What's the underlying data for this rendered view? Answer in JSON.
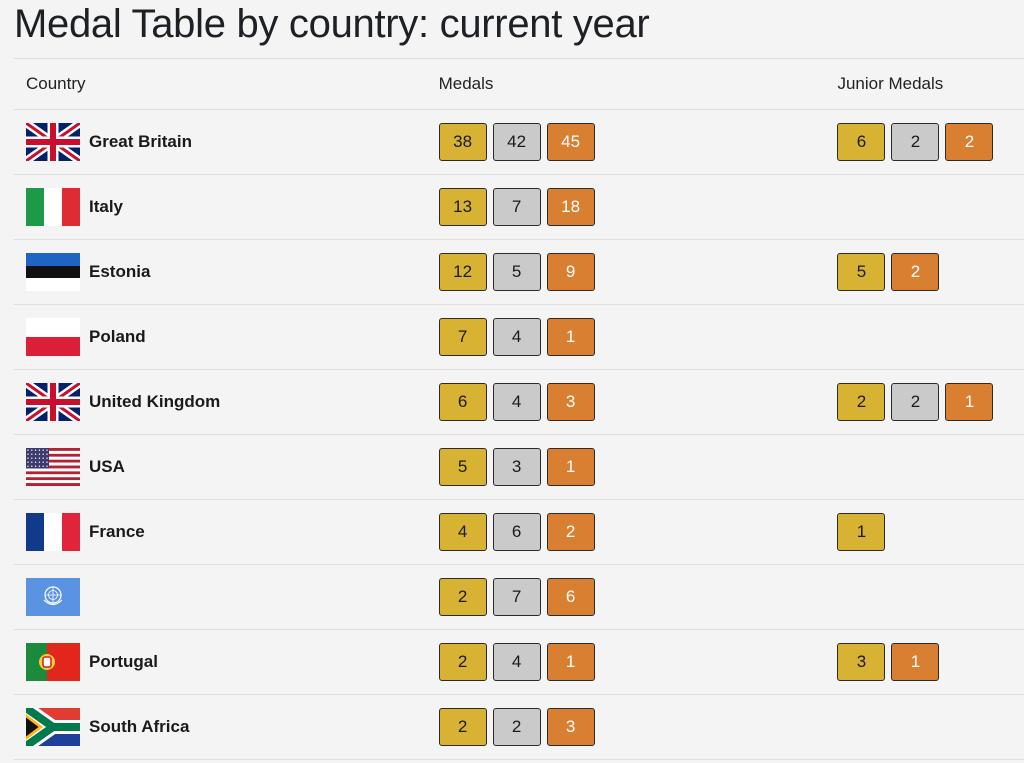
{
  "page": {
    "title": "Medal Table by country: current year"
  },
  "table": {
    "headers": {
      "country": "Country",
      "medals": "Medals",
      "junior": "Junior Medals"
    },
    "rows": [
      {
        "country": "Great Britain",
        "flag": "uk-flag",
        "medals": [
          {
            "type": "gold",
            "value": "38"
          },
          {
            "type": "silver",
            "value": "42"
          },
          {
            "type": "bronze",
            "value": "45"
          }
        ],
        "junior": [
          {
            "type": "gold",
            "value": "6"
          },
          {
            "type": "silver",
            "value": "2"
          },
          {
            "type": "bronze",
            "value": "2"
          }
        ]
      },
      {
        "country": "Italy",
        "flag": "italy-flag",
        "medals": [
          {
            "type": "gold",
            "value": "13"
          },
          {
            "type": "silver",
            "value": "7"
          },
          {
            "type": "bronze",
            "value": "18"
          }
        ],
        "junior": []
      },
      {
        "country": "Estonia",
        "flag": "estonia-flag",
        "medals": [
          {
            "type": "gold",
            "value": "12"
          },
          {
            "type": "silver",
            "value": "5"
          },
          {
            "type": "bronze",
            "value": "9"
          }
        ],
        "junior": [
          {
            "type": "gold",
            "value": "5"
          },
          {
            "type": "bronze",
            "value": "2"
          }
        ]
      },
      {
        "country": "Poland",
        "flag": "poland-flag",
        "medals": [
          {
            "type": "gold",
            "value": "7"
          },
          {
            "type": "silver",
            "value": "4"
          },
          {
            "type": "bronze",
            "value": "1"
          }
        ],
        "junior": []
      },
      {
        "country": "United Kingdom",
        "flag": "uk-flag",
        "medals": [
          {
            "type": "gold",
            "value": "6"
          },
          {
            "type": "silver",
            "value": "4"
          },
          {
            "type": "bronze",
            "value": "3"
          }
        ],
        "junior": [
          {
            "type": "gold",
            "value": "2"
          },
          {
            "type": "silver",
            "value": "2"
          },
          {
            "type": "bronze",
            "value": "1"
          }
        ]
      },
      {
        "country": "USA",
        "flag": "usa-flag",
        "medals": [
          {
            "type": "gold",
            "value": "5"
          },
          {
            "type": "silver",
            "value": "3"
          },
          {
            "type": "bronze",
            "value": "1"
          }
        ],
        "junior": []
      },
      {
        "country": "France",
        "flag": "france-flag",
        "medals": [
          {
            "type": "gold",
            "value": "4"
          },
          {
            "type": "silver",
            "value": "6"
          },
          {
            "type": "bronze",
            "value": "2"
          }
        ],
        "junior": [
          {
            "type": "gold",
            "value": "1"
          }
        ]
      },
      {
        "country": "",
        "flag": "un-flag",
        "medals": [
          {
            "type": "gold",
            "value": "2"
          },
          {
            "type": "silver",
            "value": "7"
          },
          {
            "type": "bronze",
            "value": "6"
          }
        ],
        "junior": []
      },
      {
        "country": "Portugal",
        "flag": "portugal-flag",
        "medals": [
          {
            "type": "gold",
            "value": "2"
          },
          {
            "type": "silver",
            "value": "4"
          },
          {
            "type": "bronze",
            "value": "1"
          }
        ],
        "junior": [
          {
            "type": "gold",
            "value": "3"
          },
          {
            "type": "bronze",
            "value": "1"
          }
        ]
      },
      {
        "country": "South Africa",
        "flag": "south-africa-flag",
        "medals": [
          {
            "type": "gold",
            "value": "2"
          },
          {
            "type": "silver",
            "value": "2"
          },
          {
            "type": "bronze",
            "value": "3"
          }
        ],
        "junior": []
      }
    ]
  },
  "colors": {
    "gold": "#d8b233",
    "silver": "#cacaca",
    "bronze": "#d87f31",
    "background": "#f4f4f4"
  }
}
